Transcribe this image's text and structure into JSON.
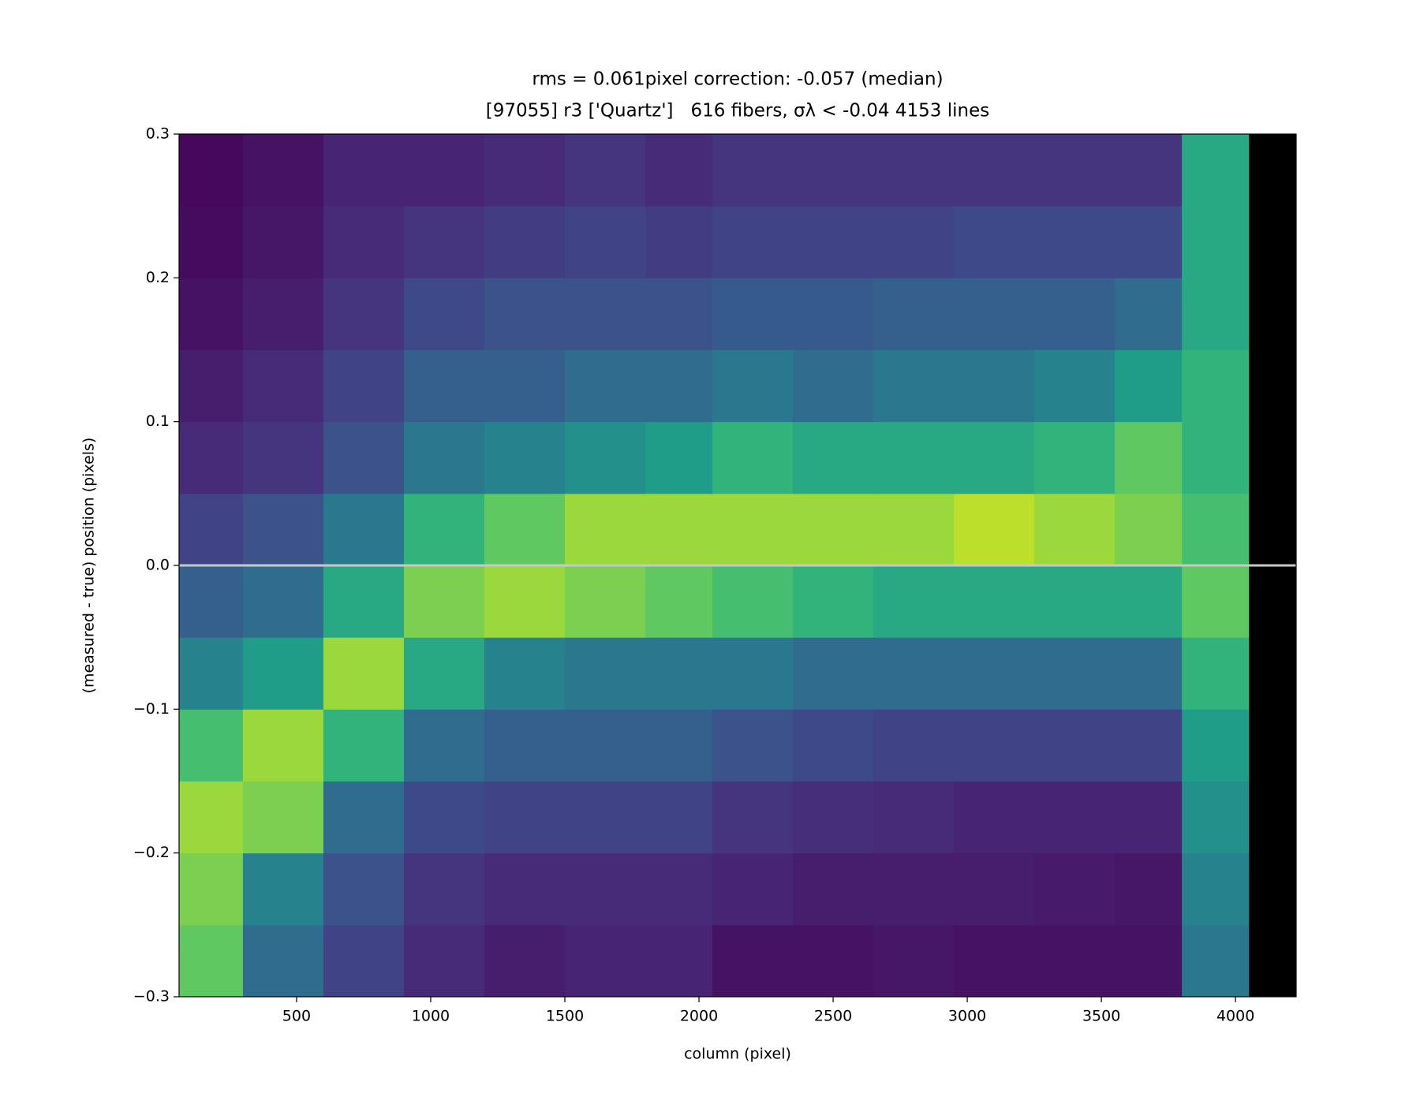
{
  "chart_data": {
    "type": "hexbin",
    "title": [
      "rms = 0.061pixel correction: -0.057 (median)",
      "[97055] r3 ['Quartz']   616 fibers, σλ < -0.04 4153 lines"
    ],
    "xlabel": "column (pixel)",
    "ylabel": "(measured - true) position (pixels)",
    "xlim": [
      62,
      4226
    ],
    "ylim": [
      -0.3,
      0.3
    ],
    "xticks": [
      500,
      1000,
      1500,
      2000,
      2500,
      3000,
      3500,
      4000
    ],
    "yticks": [
      {
        "value": -0.3,
        "label": "−0.3"
      },
      {
        "value": -0.2,
        "label": "−0.2"
      },
      {
        "value": -0.1,
        "label": "−0.1"
      },
      {
        "value": 0,
        "label": "0.0"
      },
      0.1,
      0.2,
      0.3
    ],
    "colormap": "viridis",
    "empty_color": "#000000",
    "reference_line": {
      "y": 0,
      "color": "#c8c8c8"
    },
    "x_edges": [
      62,
      300,
      600,
      900,
      1200,
      1500,
      1800,
      2050,
      2350,
      2650,
      2950,
      3250,
      3550,
      3800,
      4050,
      4226
    ],
    "y_edges": [
      -0.3,
      -0.25,
      -0.2,
      -0.15,
      -0.1,
      -0.05,
      0,
      0.05,
      0.1,
      0.15,
      0.2,
      0.25,
      0.3
    ],
    "values": [
      [
        0.75,
        0.35,
        0.2,
        0.12,
        0.08,
        0.1,
        0.1,
        0.05,
        0.05,
        0.06,
        0.05,
        0.05,
        0.05,
        0.4,
        0
      ],
      [
        0.8,
        0.45,
        0.25,
        0.15,
        0.12,
        0.12,
        0.12,
        0.1,
        0.08,
        0.08,
        0.08,
        0.07,
        0.06,
        0.45,
        0
      ],
      [
        0.85,
        0.8,
        0.35,
        0.22,
        0.2,
        0.2,
        0.2,
        0.15,
        0.13,
        0.12,
        0.1,
        0.1,
        0.1,
        0.5,
        0
      ],
      [
        0.7,
        0.85,
        0.65,
        0.35,
        0.3,
        0.3,
        0.3,
        0.25,
        0.22,
        0.2,
        0.2,
        0.2,
        0.2,
        0.55,
        0
      ],
      [
        0.45,
        0.55,
        0.85,
        0.6,
        0.45,
        0.4,
        0.4,
        0.4,
        0.35,
        0.35,
        0.35,
        0.35,
        0.35,
        0.65,
        0
      ],
      [
        0.3,
        0.35,
        0.6,
        0.8,
        0.85,
        0.8,
        0.75,
        0.7,
        0.65,
        0.6,
        0.6,
        0.6,
        0.6,
        0.75,
        0
      ],
      [
        0.2,
        0.25,
        0.4,
        0.65,
        0.75,
        0.85,
        0.85,
        0.85,
        0.85,
        0.85,
        0.9,
        0.85,
        0.8,
        0.7,
        0
      ],
      [
        0.12,
        0.15,
        0.25,
        0.4,
        0.45,
        0.5,
        0.55,
        0.65,
        0.6,
        0.6,
        0.6,
        0.65,
        0.75,
        0.65,
        0
      ],
      [
        0.08,
        0.12,
        0.2,
        0.3,
        0.3,
        0.35,
        0.35,
        0.4,
        0.35,
        0.4,
        0.4,
        0.45,
        0.55,
        0.65,
        0
      ],
      [
        0.05,
        0.08,
        0.15,
        0.22,
        0.25,
        0.25,
        0.25,
        0.28,
        0.28,
        0.3,
        0.3,
        0.3,
        0.35,
        0.6,
        0
      ],
      [
        0.03,
        0.06,
        0.12,
        0.15,
        0.18,
        0.2,
        0.18,
        0.2,
        0.2,
        0.2,
        0.22,
        0.22,
        0.22,
        0.6,
        0
      ],
      [
        0.02,
        0.05,
        0.1,
        0.1,
        0.12,
        0.15,
        0.12,
        0.15,
        0.15,
        0.15,
        0.15,
        0.15,
        0.15,
        0.6,
        0
      ]
    ]
  }
}
